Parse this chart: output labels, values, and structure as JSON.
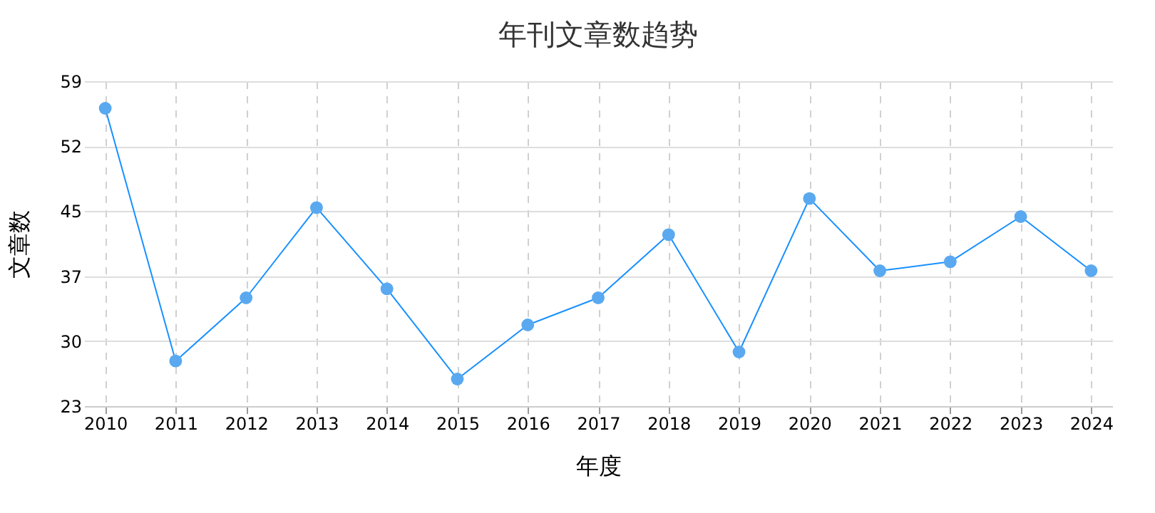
{
  "chart_data": {
    "type": "line",
    "title": "年刊文章数趋势",
    "xlabel": "年度",
    "ylabel": "文章数",
    "categories": [
      "2010",
      "2011",
      "2012",
      "2013",
      "2014",
      "2015",
      "2016",
      "2017",
      "2018",
      "2019",
      "2020",
      "2021",
      "2022",
      "2023",
      "2024"
    ],
    "series": [
      {
        "color": "#1890ff",
        "values": [
          56,
          28,
          35,
          45,
          36,
          26,
          32,
          35,
          42,
          29,
          46,
          38,
          39,
          44,
          38
        ]
      }
    ],
    "ylim": [
      23,
      59
    ],
    "yticks": [
      23,
      {
        "value": 30.2,
        "label": "30"
      },
      {
        "value": 37.4,
        "label": "37"
      },
      {
        "value": 44.6,
        "label": "45"
      },
      {
        "value": 51.8,
        "label": "52"
      },
      59
    ],
    "grid": true,
    "marker": "circle",
    "line_style": "solid"
  }
}
